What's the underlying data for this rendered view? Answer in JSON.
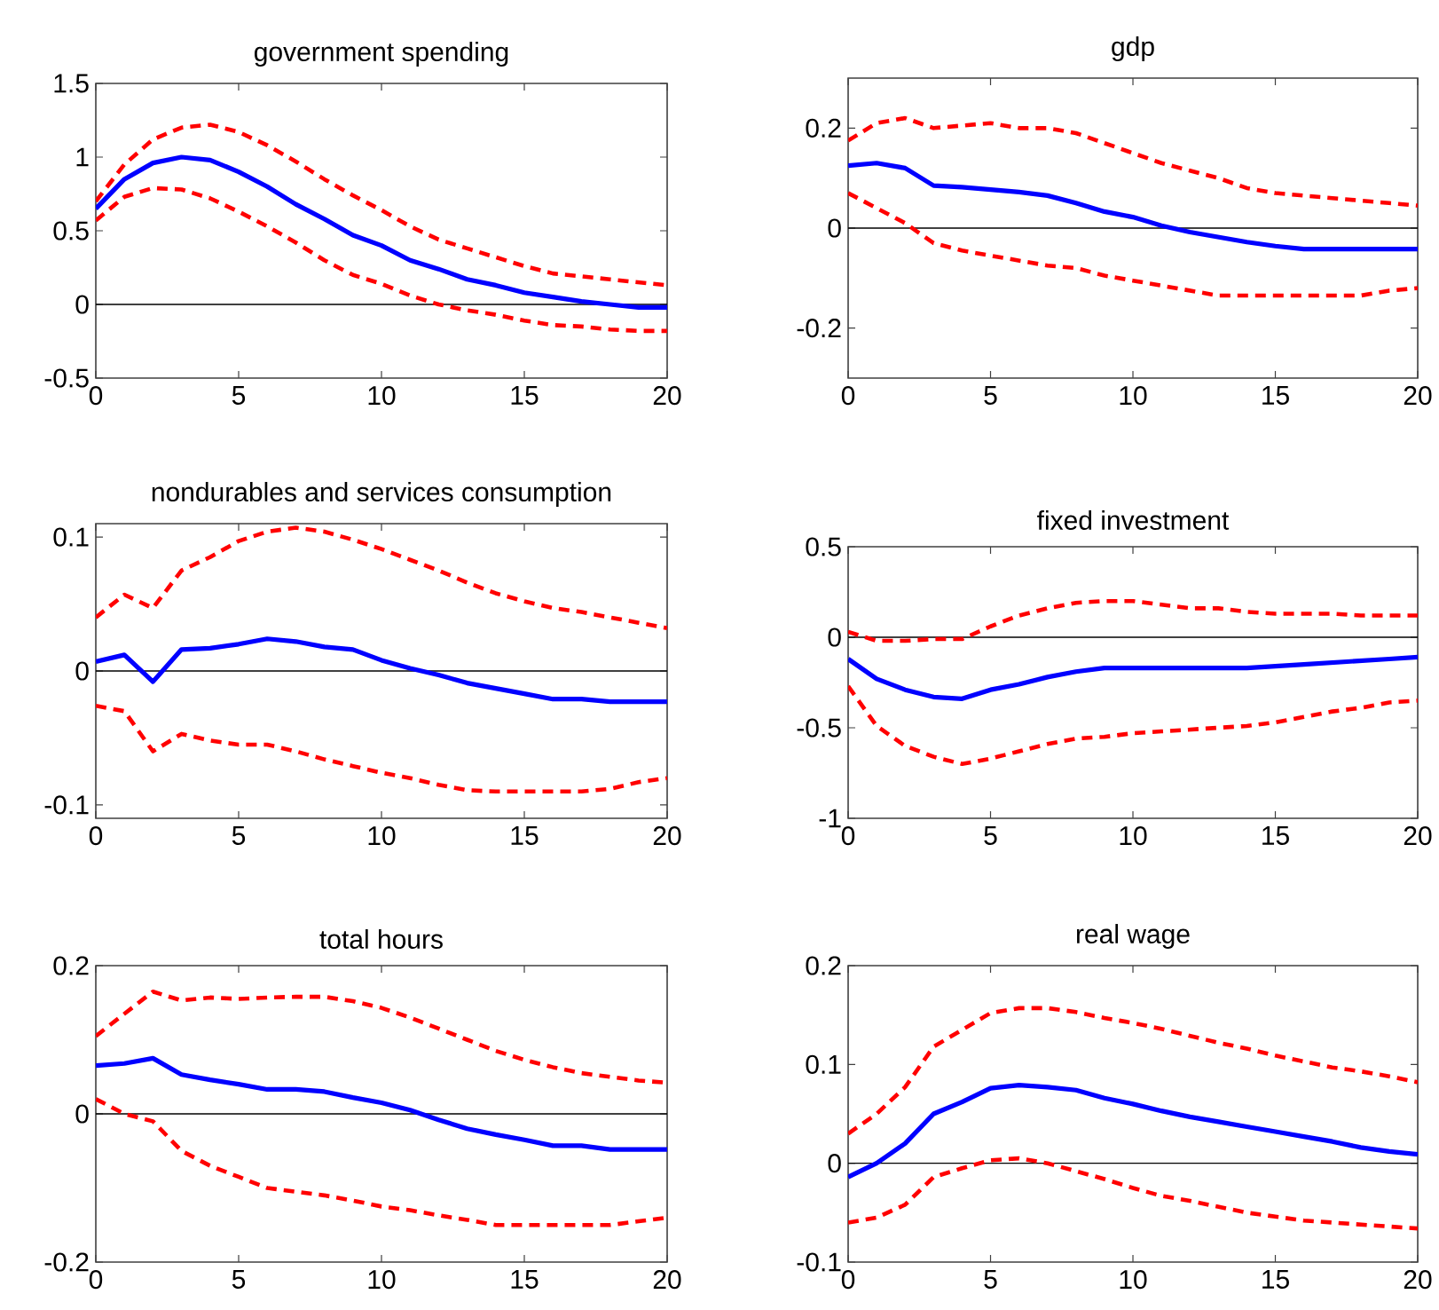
{
  "chart_data": [
    {
      "type": "line",
      "title": "government spending",
      "x": [
        0,
        1,
        2,
        3,
        4,
        5,
        6,
        7,
        8,
        9,
        10,
        11,
        12,
        13,
        14,
        15,
        16,
        17,
        18,
        19,
        20
      ],
      "xlim": [
        0,
        20
      ],
      "xticks": [
        0,
        5,
        10,
        15,
        20
      ],
      "ylim": [
        -0.5,
        1.5
      ],
      "yticks": [
        -0.5,
        0,
        0.5,
        1,
        1.5
      ],
      "series": [
        {
          "color": "#ff0000",
          "line_style": "dashed",
          "values": [
            0.7,
            0.95,
            1.12,
            1.2,
            1.22,
            1.17,
            1.08,
            0.97,
            0.85,
            0.74,
            0.64,
            0.53,
            0.44,
            0.38,
            0.32,
            0.26,
            0.21,
            0.19,
            0.17,
            0.15,
            0.13
          ]
        },
        {
          "color": "#ff0000",
          "line_style": "dashed",
          "values": [
            0.57,
            0.73,
            0.79,
            0.78,
            0.72,
            0.63,
            0.53,
            0.42,
            0.3,
            0.2,
            0.14,
            0.06,
            0.0,
            -0.04,
            -0.07,
            -0.11,
            -0.14,
            -0.15,
            -0.17,
            -0.18,
            -0.18
          ]
        },
        {
          "color": "#0000ff",
          "line_style": "solid",
          "values": [
            0.65,
            0.85,
            0.96,
            1.0,
            0.98,
            0.9,
            0.8,
            0.68,
            0.58,
            0.47,
            0.4,
            0.3,
            0.24,
            0.17,
            0.13,
            0.08,
            0.05,
            0.02,
            0.0,
            -0.02,
            -0.02
          ]
        }
      ],
      "ref_lines": [
        {
          "axis": "y",
          "value": 0,
          "color": "#000000"
        }
      ]
    },
    {
      "type": "line",
      "title": "gdp",
      "x": [
        0,
        1,
        2,
        3,
        4,
        5,
        6,
        7,
        8,
        9,
        10,
        11,
        12,
        13,
        14,
        15,
        16,
        17,
        18,
        19,
        20
      ],
      "xlim": [
        0,
        20
      ],
      "xticks": [
        0,
        5,
        10,
        15,
        20
      ],
      "ylim": [
        -0.3,
        0.3
      ],
      "yticks": [
        -0.2,
        0,
        0.2
      ],
      "series": [
        {
          "color": "#ff0000",
          "line_style": "dashed",
          "values": [
            0.175,
            0.21,
            0.22,
            0.2,
            0.205,
            0.21,
            0.2,
            0.2,
            0.19,
            0.17,
            0.15,
            0.13,
            0.115,
            0.1,
            0.08,
            0.07,
            0.065,
            0.06,
            0.055,
            0.05,
            0.045
          ]
        },
        {
          "color": "#ff0000",
          "line_style": "dashed",
          "values": [
            0.07,
            0.04,
            0.01,
            -0.03,
            -0.045,
            -0.055,
            -0.065,
            -0.075,
            -0.08,
            -0.095,
            -0.105,
            -0.115,
            -0.125,
            -0.135,
            -0.135,
            -0.135,
            -0.135,
            -0.135,
            -0.135,
            -0.125,
            -0.12
          ]
        },
        {
          "color": "#0000ff",
          "line_style": "solid",
          "values": [
            0.125,
            0.13,
            0.12,
            0.085,
            0.082,
            0.077,
            0.072,
            0.065,
            0.05,
            0.033,
            0.022,
            0.005,
            -0.008,
            -0.018,
            -0.028,
            -0.036,
            -0.042,
            -0.042,
            -0.042,
            -0.042,
            -0.042
          ]
        }
      ],
      "ref_lines": [
        {
          "axis": "y",
          "value": 0,
          "color": "#000000"
        }
      ]
    },
    {
      "type": "line",
      "title": "nondurables and services consumption",
      "x": [
        0,
        1,
        2,
        3,
        4,
        5,
        6,
        7,
        8,
        9,
        10,
        11,
        12,
        13,
        14,
        15,
        16,
        17,
        18,
        19,
        20
      ],
      "xlim": [
        0,
        20
      ],
      "xticks": [
        0,
        5,
        10,
        15,
        20
      ],
      "ylim": [
        -0.11,
        0.11
      ],
      "yticks": [
        -0.1,
        0,
        0.1
      ],
      "series": [
        {
          "color": "#ff0000",
          "line_style": "dashed",
          "values": [
            0.04,
            0.057,
            0.047,
            0.075,
            0.085,
            0.097,
            0.104,
            0.107,
            0.104,
            0.098,
            0.091,
            0.083,
            0.075,
            0.066,
            0.058,
            0.052,
            0.047,
            0.044,
            0.04,
            0.036,
            0.032
          ]
        },
        {
          "color": "#ff0000",
          "line_style": "dashed",
          "values": [
            -0.026,
            -0.03,
            -0.06,
            -0.047,
            -0.052,
            -0.055,
            -0.055,
            -0.06,
            -0.066,
            -0.071,
            -0.076,
            -0.08,
            -0.085,
            -0.089,
            -0.09,
            -0.09,
            -0.09,
            -0.09,
            -0.088,
            -0.083,
            -0.08
          ]
        },
        {
          "color": "#0000ff",
          "line_style": "solid",
          "values": [
            0.007,
            0.012,
            -0.008,
            0.016,
            0.017,
            0.02,
            0.024,
            0.022,
            0.018,
            0.016,
            0.008,
            0.002,
            -0.003,
            -0.009,
            -0.013,
            -0.017,
            -0.021,
            -0.021,
            -0.023,
            -0.023,
            -0.023
          ]
        }
      ],
      "ref_lines": [
        {
          "axis": "y",
          "value": 0,
          "color": "#000000"
        }
      ]
    },
    {
      "type": "line",
      "title": "fixed investment",
      "x": [
        0,
        1,
        2,
        3,
        4,
        5,
        6,
        7,
        8,
        9,
        10,
        11,
        12,
        13,
        14,
        15,
        16,
        17,
        18,
        19,
        20
      ],
      "xlim": [
        0,
        20
      ],
      "xticks": [
        0,
        5,
        10,
        15,
        20
      ],
      "ylim": [
        -1,
        0.5
      ],
      "yticks": [
        -1,
        -0.5,
        0,
        0.5
      ],
      "series": [
        {
          "color": "#ff0000",
          "line_style": "dashed",
          "values": [
            0.03,
            -0.02,
            -0.02,
            -0.01,
            -0.01,
            0.06,
            0.12,
            0.16,
            0.19,
            0.2,
            0.2,
            0.18,
            0.16,
            0.16,
            0.14,
            0.13,
            0.13,
            0.13,
            0.12,
            0.12,
            0.12
          ]
        },
        {
          "color": "#ff0000",
          "line_style": "dashed",
          "values": [
            -0.27,
            -0.49,
            -0.6,
            -0.66,
            -0.7,
            -0.67,
            -0.63,
            -0.59,
            -0.56,
            -0.55,
            -0.53,
            -0.52,
            -0.51,
            -0.5,
            -0.49,
            -0.47,
            -0.44,
            -0.41,
            -0.39,
            -0.36,
            -0.35
          ]
        },
        {
          "color": "#0000ff",
          "line_style": "solid",
          "values": [
            -0.12,
            -0.23,
            -0.29,
            -0.33,
            -0.34,
            -0.29,
            -0.26,
            -0.22,
            -0.19,
            -0.17,
            -0.17,
            -0.17,
            -0.17,
            -0.17,
            -0.17,
            -0.16,
            -0.15,
            -0.14,
            -0.13,
            -0.12,
            -0.11
          ]
        }
      ],
      "ref_lines": [
        {
          "axis": "y",
          "value": 0,
          "color": "#000000"
        }
      ]
    },
    {
      "type": "line",
      "title": "total hours",
      "x": [
        0,
        1,
        2,
        3,
        4,
        5,
        6,
        7,
        8,
        9,
        10,
        11,
        12,
        13,
        14,
        15,
        16,
        17,
        18,
        19,
        20
      ],
      "xlim": [
        0,
        20
      ],
      "xticks": [
        0,
        5,
        10,
        15,
        20
      ],
      "ylim": [
        -0.2,
        0.2
      ],
      "yticks": [
        -0.2,
        0,
        0.2
      ],
      "series": [
        {
          "color": "#ff0000",
          "line_style": "dashed",
          "values": [
            0.105,
            0.135,
            0.165,
            0.153,
            0.157,
            0.155,
            0.157,
            0.158,
            0.158,
            0.152,
            0.143,
            0.13,
            0.115,
            0.1,
            0.085,
            0.073,
            0.063,
            0.055,
            0.05,
            0.045,
            0.042
          ]
        },
        {
          "color": "#ff0000",
          "line_style": "dashed",
          "values": [
            0.02,
            0.0,
            -0.01,
            -0.05,
            -0.07,
            -0.085,
            -0.1,
            -0.105,
            -0.11,
            -0.117,
            -0.125,
            -0.13,
            -0.137,
            -0.143,
            -0.15,
            -0.15,
            -0.15,
            -0.15,
            -0.15,
            -0.145,
            -0.14
          ]
        },
        {
          "color": "#0000ff",
          "line_style": "solid",
          "values": [
            0.065,
            0.068,
            0.075,
            0.053,
            0.046,
            0.04,
            0.033,
            0.033,
            0.03,
            0.022,
            0.015,
            0.005,
            -0.008,
            -0.02,
            -0.028,
            -0.035,
            -0.043,
            -0.043,
            -0.048,
            -0.048,
            -0.048
          ]
        }
      ],
      "ref_lines": [
        {
          "axis": "y",
          "value": 0,
          "color": "#000000"
        }
      ]
    },
    {
      "type": "line",
      "title": "real wage",
      "x": [
        0,
        1,
        2,
        3,
        4,
        5,
        6,
        7,
        8,
        9,
        10,
        11,
        12,
        13,
        14,
        15,
        16,
        17,
        18,
        19,
        20
      ],
      "xlim": [
        0,
        20
      ],
      "xticks": [
        0,
        5,
        10,
        15,
        20
      ],
      "ylim": [
        -0.1,
        0.2
      ],
      "yticks": [
        -0.1,
        0,
        0.1,
        0.2
      ],
      "series": [
        {
          "color": "#ff0000",
          "line_style": "dashed",
          "values": [
            0.03,
            0.05,
            0.077,
            0.118,
            0.135,
            0.152,
            0.157,
            0.157,
            0.153,
            0.147,
            0.142,
            0.136,
            0.129,
            0.122,
            0.116,
            0.109,
            0.103,
            0.097,
            0.093,
            0.088,
            0.082
          ]
        },
        {
          "color": "#ff0000",
          "line_style": "dashed",
          "values": [
            -0.06,
            -0.055,
            -0.042,
            -0.014,
            -0.005,
            0.003,
            0.005,
            0.0,
            -0.008,
            -0.016,
            -0.025,
            -0.033,
            -0.038,
            -0.044,
            -0.05,
            -0.054,
            -0.058,
            -0.06,
            -0.062,
            -0.064,
            -0.066
          ]
        },
        {
          "color": "#0000ff",
          "line_style": "solid",
          "values": [
            -0.014,
            0.0,
            0.02,
            0.05,
            0.062,
            0.076,
            0.079,
            0.077,
            0.074,
            0.066,
            0.06,
            0.053,
            0.047,
            0.042,
            0.037,
            0.032,
            0.027,
            0.022,
            0.016,
            0.012,
            0.009
          ]
        }
      ],
      "ref_lines": [
        {
          "axis": "y",
          "value": 0,
          "color": "#000000"
        }
      ]
    }
  ]
}
